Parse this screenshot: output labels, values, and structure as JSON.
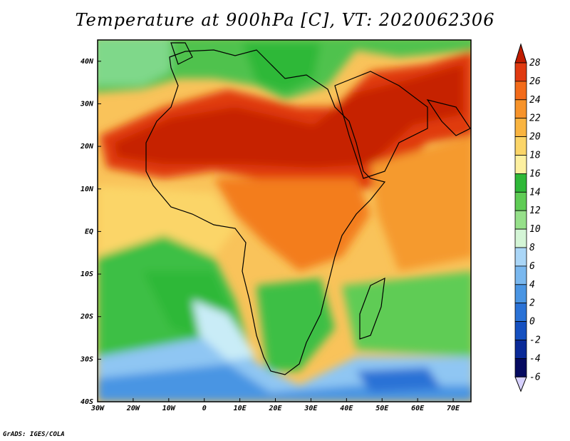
{
  "title": "Temperature at 900hPa [C], VT: 2020062306",
  "credit": "GrADS: IGES/COLA",
  "map": {
    "lat_ticks": [
      "40N",
      "30N",
      "20N",
      "10N",
      "EQ",
      "10S",
      "20S",
      "30S",
      "40S"
    ],
    "lon_ticks": [
      "30W",
      "20W",
      "10W",
      "0",
      "10E",
      "20E",
      "30E",
      "40E",
      "50E",
      "60E",
      "70E"
    ],
    "lat_range": [
      -40,
      45
    ],
    "lon_range": [
      -30,
      75
    ]
  },
  "colorbar": {
    "labels": [
      "28",
      "26",
      "24",
      "22",
      "20",
      "18",
      "16",
      "14",
      "12",
      "10",
      "8",
      "6",
      "4",
      "2",
      "0",
      "-2",
      "-4",
      "-6"
    ],
    "colors": [
      "#c01c00",
      "#e03a10",
      "#f36b1a",
      "#f7932a",
      "#f9b440",
      "#fbd568",
      "#fdf0a0",
      "#2fb838",
      "#5fcc55",
      "#96e08a",
      "#d4f5d6",
      "#aad6f7",
      "#7ab8ef",
      "#4a95e3",
      "#2a72d6",
      "#1550c0",
      "#0a2a98",
      "#050a60",
      "#d7d1ff"
    ]
  }
}
